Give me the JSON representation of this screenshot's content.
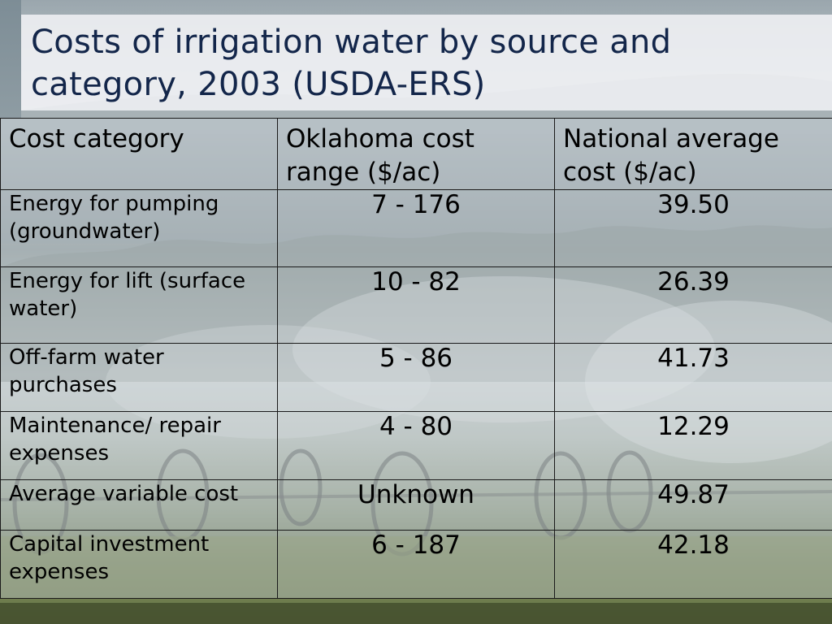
{
  "slide": {
    "title": "Costs of irrigation water by source and category, 2003 (USDA-ERS)"
  },
  "table": {
    "headers": [
      "Cost category",
      "Oklahoma cost range ($/ac)",
      "National average cost ($/ac)"
    ],
    "rows": [
      {
        "category": "Energy for pumping (groundwater)",
        "oklahoma": "7 - 176",
        "national": "39.50"
      },
      {
        "category": "Energy for lift (surface water)",
        "oklahoma": "10 - 82",
        "national": "26.39"
      },
      {
        "category": "Off-farm water purchases",
        "oklahoma": "5 - 86",
        "national": "41.73"
      },
      {
        "category": "Maintenance/ repair expenses",
        "oklahoma": "4 - 80",
        "national": "12.29"
      },
      {
        "category": "Average variable cost",
        "oklahoma": "Unknown",
        "national": "49.87"
      },
      {
        "category": "Capital investment expenses",
        "oklahoma": "6 - 187",
        "national": "42.18"
      }
    ]
  }
}
